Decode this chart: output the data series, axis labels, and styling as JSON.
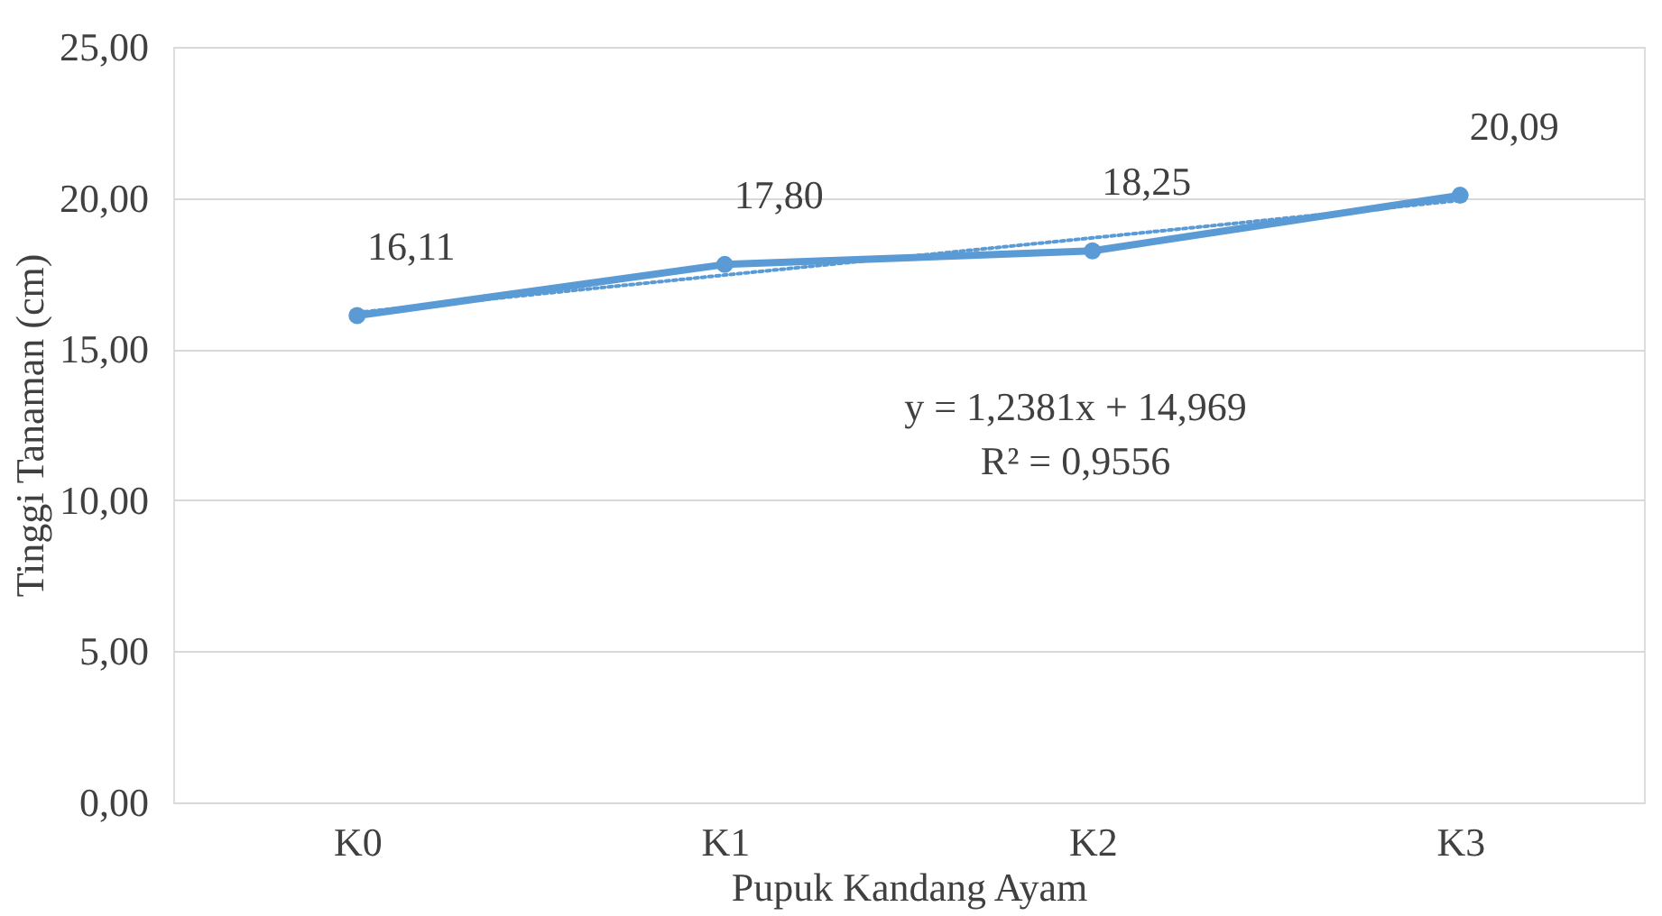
{
  "chart_data": {
    "type": "line",
    "xlabel": "Pupuk Kandang Ayam",
    "ylabel": "Tinggi Tanaman (cm)",
    "categories": [
      "K0",
      "K1",
      "K2",
      "K3"
    ],
    "series": [
      {
        "color": "#5b9bd5",
        "values": [
          16.11,
          17.8,
          18.25,
          20.09
        ],
        "value_labels": [
          "16,11",
          "17,80",
          "18,25",
          "20,09"
        ],
        "marker": "circle",
        "line_style": "solid"
      },
      {
        "type": "line",
        "color": "#5b9bd5",
        "values": [
          16.21,
          17.45,
          18.68,
          19.92
        ],
        "marker": "none",
        "line_style": "dotted"
      }
    ],
    "ylim": [
      0,
      25
    ],
    "yticks": [
      {
        "value": 0,
        "label": "0,00"
      },
      {
        "value": 5,
        "label": "5,00"
      },
      {
        "value": 10,
        "label": "10,00"
      },
      {
        "value": 15,
        "label": "15,00"
      },
      {
        "value": 20,
        "label": "20,00"
      },
      {
        "value": 25,
        "label": "25,00"
      }
    ],
    "annotations": [
      "y = 1,2381x + 14,969",
      "R² = 0,9556"
    ],
    "grid": "y"
  }
}
